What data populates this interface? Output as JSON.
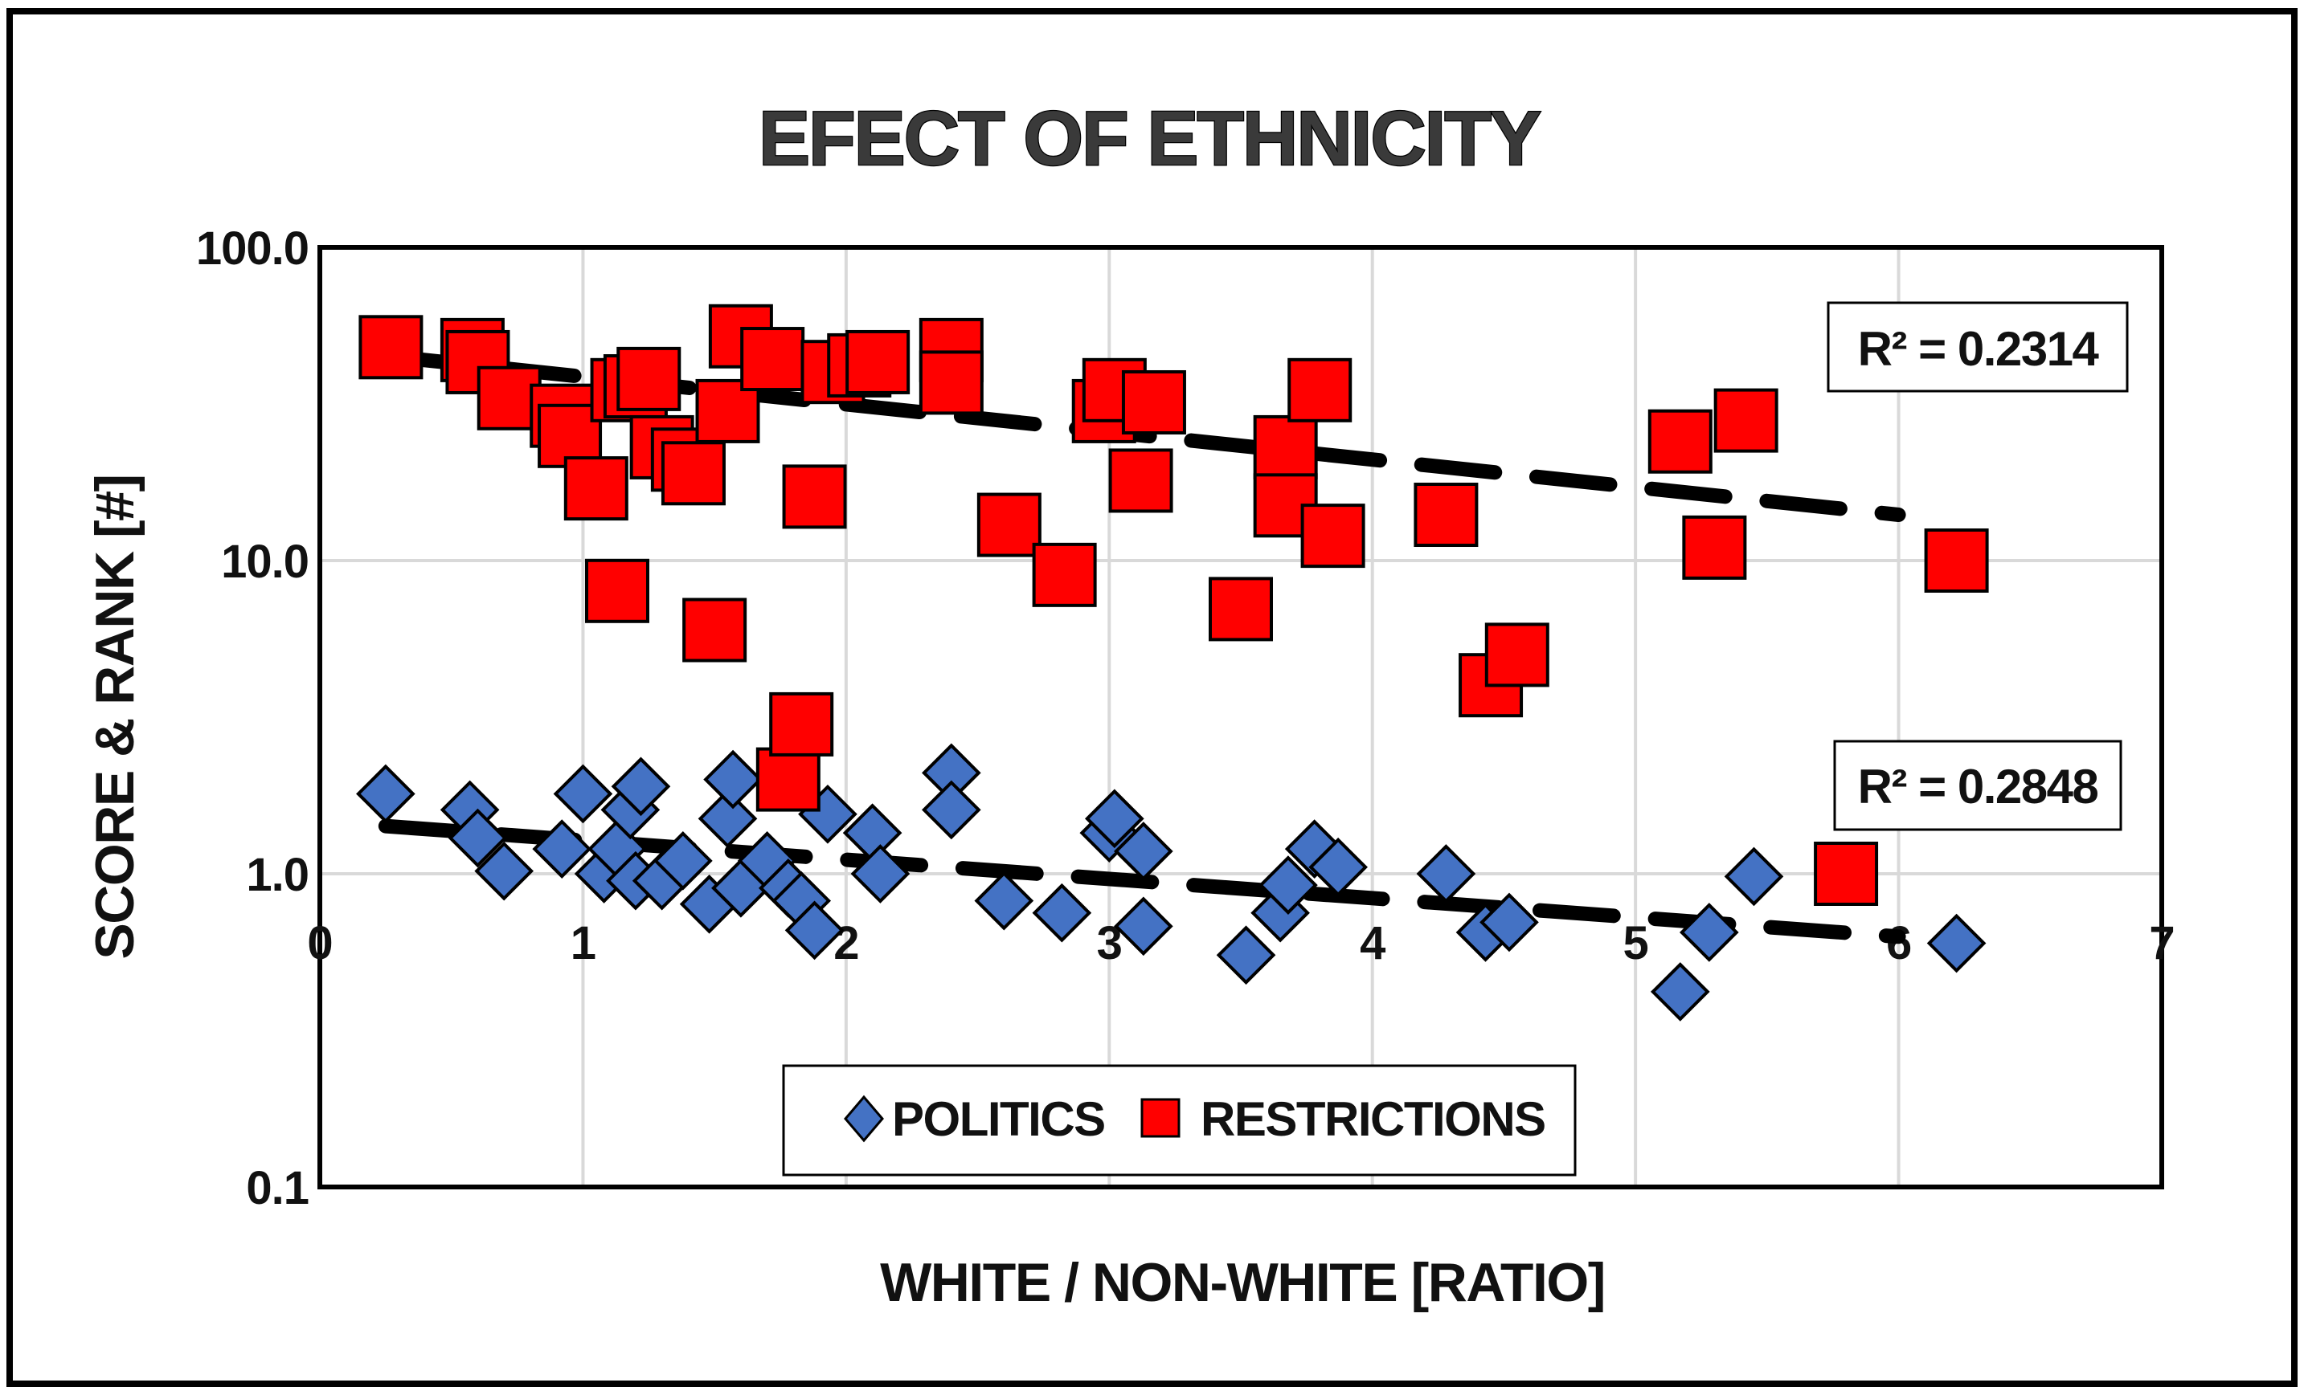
{
  "chart_data": {
    "type": "scatter",
    "title": "EFECT OF ETHNICITY",
    "xlabel": "WHITE / NON-WHITE [RATIO]",
    "ylabel": "SCORE & RANK [#]",
    "xlim": [
      0,
      7
    ],
    "ylim": [
      0.1,
      100
    ],
    "yscale": "log",
    "grid": true,
    "x_ticks": [
      "0",
      "1",
      "2",
      "3",
      "4",
      "5",
      "6",
      "7"
    ],
    "y_ticks": [
      "0.1",
      "1.0",
      "10.0",
      "100.0"
    ],
    "legend_position": "bottom-center",
    "series": [
      {
        "name": "POLITICS",
        "marker": "diamond",
        "color": "#4472c4",
        "r_squared_label": "R² = 0.2848",
        "trend": {
          "x0": 0.25,
          "y0": 1.42,
          "x1": 6.0,
          "y1": 0.63
        },
        "points": [
          [
            0.25,
            1.8
          ],
          [
            0.57,
            1.6
          ],
          [
            0.6,
            1.3
          ],
          [
            0.7,
            1.02
          ],
          [
            0.92,
            1.2
          ],
          [
            1.0,
            1.8
          ],
          [
            1.08,
            1.0
          ],
          [
            1.13,
            1.2
          ],
          [
            1.18,
            1.6
          ],
          [
            1.2,
            0.95
          ],
          [
            1.22,
            1.9
          ],
          [
            1.3,
            0.95
          ],
          [
            1.38,
            1.1
          ],
          [
            1.48,
            0.8
          ],
          [
            1.55,
            1.5
          ],
          [
            1.57,
            2.0
          ],
          [
            1.6,
            0.9
          ],
          [
            1.7,
            1.1
          ],
          [
            1.78,
            0.9
          ],
          [
            1.83,
            0.82
          ],
          [
            1.88,
            0.66
          ],
          [
            1.93,
            1.55
          ],
          [
            2.1,
            1.35
          ],
          [
            2.13,
            1.0
          ],
          [
            2.4,
            2.1
          ],
          [
            2.4,
            1.6
          ],
          [
            2.6,
            0.82
          ],
          [
            2.82,
            0.75
          ],
          [
            3.0,
            1.35
          ],
          [
            3.02,
            1.5
          ],
          [
            3.13,
            1.18
          ],
          [
            3.13,
            0.68
          ],
          [
            3.52,
            0.55
          ],
          [
            3.65,
            0.75
          ],
          [
            3.68,
            0.92
          ],
          [
            3.78,
            1.2
          ],
          [
            3.87,
            1.05
          ],
          [
            4.28,
            1.0
          ],
          [
            4.43,
            0.65
          ],
          [
            4.52,
            0.7
          ],
          [
            5.17,
            0.42
          ],
          [
            5.28,
            0.65
          ],
          [
            5.45,
            0.98
          ],
          [
            6.22,
            0.6
          ]
        ]
      },
      {
        "name": "RESTRICTIONS",
        "marker": "square",
        "color": "#ff0000",
        "r_squared_label": "R² = 0.2314",
        "trend": {
          "x0": 0.25,
          "y0": 45,
          "x1": 6.0,
          "y1": 14
        },
        "points": [
          [
            0.27,
            48
          ],
          [
            0.58,
            47
          ],
          [
            0.6,
            43
          ],
          [
            0.72,
            33
          ],
          [
            0.92,
            29
          ],
          [
            0.95,
            25
          ],
          [
            1.05,
            17
          ],
          [
            1.13,
            8
          ],
          [
            1.15,
            35
          ],
          [
            1.2,
            36
          ],
          [
            1.25,
            38
          ],
          [
            1.3,
            23
          ],
          [
            1.38,
            21
          ],
          [
            1.42,
            19
          ],
          [
            1.5,
            6
          ],
          [
            1.55,
            30
          ],
          [
            1.6,
            52
          ],
          [
            1.72,
            44
          ],
          [
            1.78,
            2
          ],
          [
            1.83,
            3
          ],
          [
            1.88,
            16
          ],
          [
            1.95,
            40
          ],
          [
            2.05,
            42
          ],
          [
            2.12,
            43
          ],
          [
            2.4,
            47
          ],
          [
            2.4,
            37
          ],
          [
            2.62,
            13
          ],
          [
            2.83,
            9
          ],
          [
            2.98,
            30
          ],
          [
            3.02,
            35
          ],
          [
            3.17,
            32
          ],
          [
            3.12,
            18
          ],
          [
            3.5,
            7
          ],
          [
            3.67,
            23
          ],
          [
            3.67,
            15
          ],
          [
            3.8,
            35
          ],
          [
            3.85,
            12
          ],
          [
            4.28,
            14
          ],
          [
            4.45,
            4
          ],
          [
            4.55,
            5
          ],
          [
            5.17,
            24
          ],
          [
            5.3,
            11
          ],
          [
            5.42,
            28
          ],
          [
            5.8,
            1
          ],
          [
            6.22,
            10
          ]
        ]
      }
    ]
  }
}
